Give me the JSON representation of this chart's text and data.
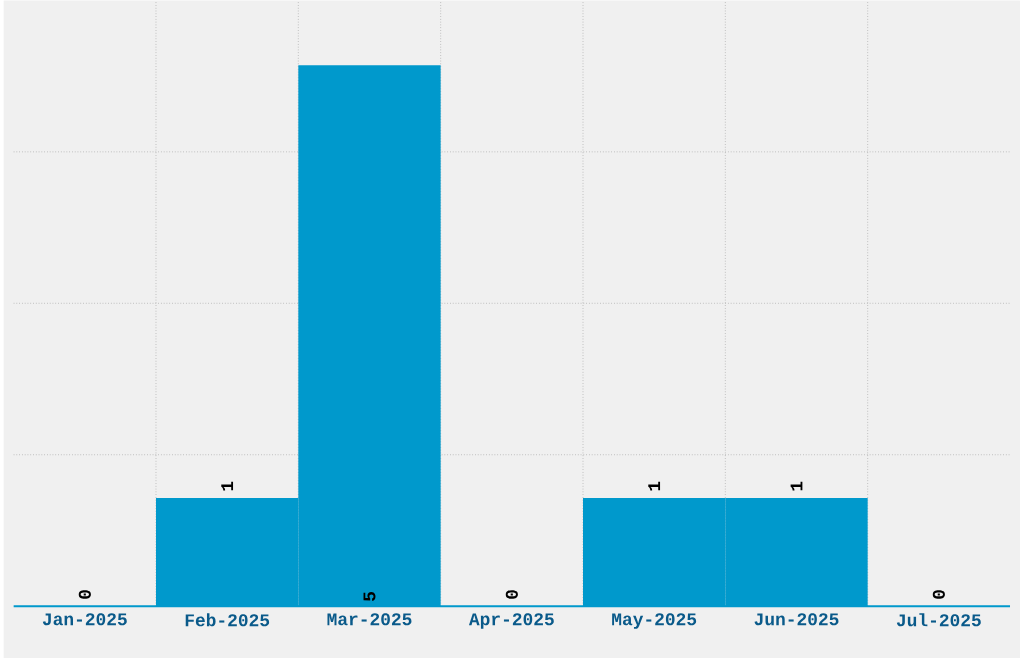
{
  "chart_data": {
    "type": "bar",
    "categories": [
      "Jan-2025",
      "Feb-2025",
      "Mar-2025",
      "Apr-2025",
      "May-2025",
      "Jun-2025",
      "Jul-2025"
    ],
    "values": [
      0,
      1,
      5,
      0,
      1,
      1,
      0
    ],
    "color": "#0099cc",
    "ylim": [
      0,
      5.6
    ],
    "grid": true,
    "data_labels": true
  }
}
